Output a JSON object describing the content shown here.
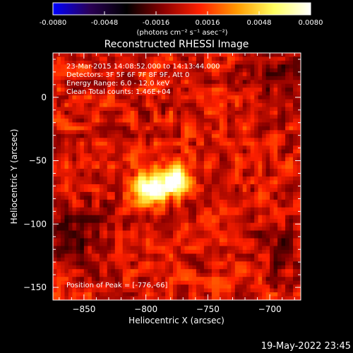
{
  "chart_data": {
    "type": "heatmap",
    "title": "Reconstructed RHESSI Image",
    "xlabel": "Heliocentric X (arcsec)",
    "ylabel": "Heliocentric Y (arcsec)",
    "xlim": [
      -875,
      -675
    ],
    "ylim": [
      -160,
      35
    ],
    "x_ticks": [
      -850,
      -800,
      -750,
      -700
    ],
    "y_ticks": [
      0,
      -50,
      -100,
      -150
    ],
    "colorbar": {
      "range": [
        -0.008,
        0.008
      ],
      "ticks": [
        -0.008,
        -0.0048,
        -0.0016,
        0.0016,
        0.0048,
        0.008
      ],
      "tick_labels": [
        "-0.0080",
        "-0.0048",
        "-0.0016",
        "0.0016",
        "0.0048",
        "0.0080"
      ],
      "unit_label": "(photons cm⁻² s⁻¹ asec⁻²)",
      "colormap": [
        "#0000ff",
        "#2a0055",
        "#000000",
        "#8b0000",
        "#ff2000",
        "#ff9a00",
        "#ffff60",
        "#ffffff"
      ]
    },
    "annotations": [
      "23-Mar-2015 14:08:52.000 to 14:13:44.000",
      "Detectors: 3F 5F 6F 7F 8F 9F, Att 0",
      "Energy Range: 6.0 - 12.0 keV",
      "Clean     Total counts: 1.46E+04"
    ],
    "peak_label": "Position of Peak = [-776,-66]",
    "peak": [
      -776,
      -66
    ],
    "sources": [
      {
        "x": -796,
        "y": -72,
        "sigma": 9,
        "amplitude": 0.0085
      },
      {
        "x": -776,
        "y": -65,
        "sigma": 8,
        "amplitude": 0.0085
      }
    ],
    "negative_regions": [
      {
        "x": -690,
        "y": 20,
        "sigma": 20,
        "amplitude": -0.0018
      },
      {
        "x": -855,
        "y": -105,
        "sigma": 20,
        "amplitude": -0.0016
      },
      {
        "x": -690,
        "y": -115,
        "sigma": 18,
        "amplitude": -0.0014
      }
    ]
  },
  "footer": {
    "timestamp": "19-May-2022 23:45"
  }
}
